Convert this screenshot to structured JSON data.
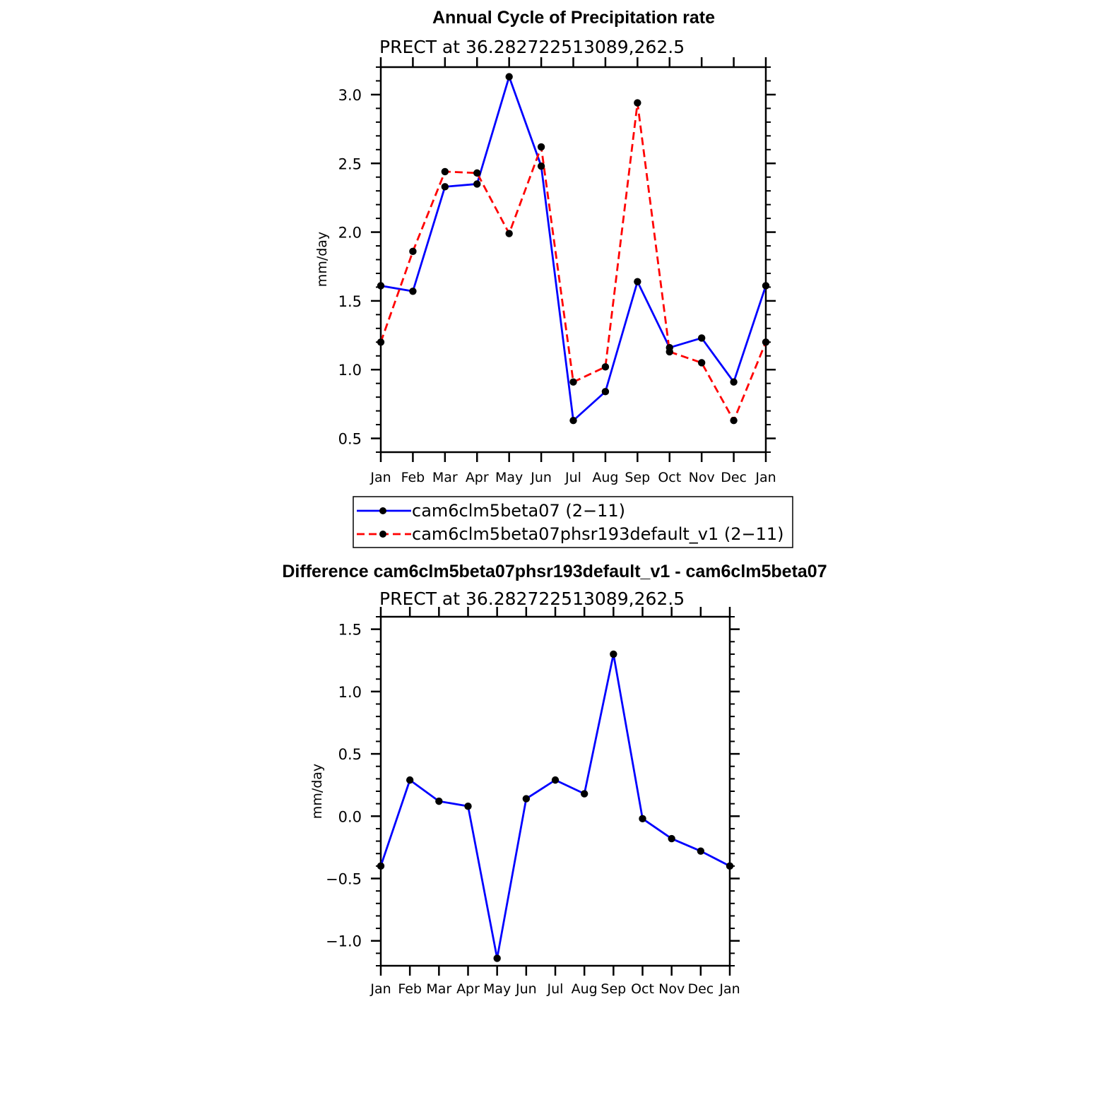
{
  "chart_data": [
    {
      "type": "line",
      "title": "Annual Cycle of Precipitation rate",
      "subtitle": "PRECT at 36.282722513089,262.5",
      "xlabel": "",
      "ylabel": "mm/day",
      "categories": [
        "Jan",
        "Feb",
        "Mar",
        "Apr",
        "May",
        "Jun",
        "Jul",
        "Aug",
        "Sep",
        "Oct",
        "Nov",
        "Dec",
        "Jan"
      ],
      "ylim": [
        0.4,
        3.2
      ],
      "yticks": [
        "0.5",
        "1.0",
        "1.5",
        "2.0",
        "2.5",
        "3.0"
      ],
      "ytick_values": [
        0.5,
        1.0,
        1.5,
        2.0,
        2.5,
        3.0
      ],
      "grid": false,
      "legend_position": "bottom",
      "series": [
        {
          "name": "cam6clm5beta07 (2−11)",
          "color": "#0000ff",
          "style": "solid",
          "values": [
            1.61,
            1.57,
            2.33,
            2.35,
            3.13,
            2.48,
            0.63,
            0.84,
            1.64,
            1.16,
            1.23,
            0.91,
            1.61
          ]
        },
        {
          "name": "cam6clm5beta07phsr193default_v1 (2−11)",
          "color": "#ff0000",
          "style": "dashed",
          "values": [
            1.2,
            1.86,
            2.44,
            2.43,
            1.99,
            2.62,
            0.91,
            1.02,
            2.94,
            1.13,
            1.05,
            0.63,
            1.2
          ]
        }
      ]
    },
    {
      "type": "line",
      "title": "Difference cam6clm5beta07phsr193default_v1 - cam6clm5beta07",
      "subtitle": "PRECT at 36.282722513089,262.5",
      "xlabel": "",
      "ylabel": "mm/day",
      "categories": [
        "Jan",
        "Feb",
        "Mar",
        "Apr",
        "May",
        "Jun",
        "Jul",
        "Aug",
        "Sep",
        "Oct",
        "Nov",
        "Dec",
        "Jan"
      ],
      "ylim": [
        -1.2,
        1.6
      ],
      "yticks": [
        "−1.0",
        "−0.5",
        "0.0",
        "0.5",
        "1.0",
        "1.5"
      ],
      "ytick_values": [
        -1.0,
        -0.5,
        0.0,
        0.5,
        1.0,
        1.5
      ],
      "grid": false,
      "series": [
        {
          "color": "#0000ff",
          "style": "solid",
          "values": [
            -0.4,
            0.29,
            0.12,
            0.08,
            -1.14,
            0.14,
            0.29,
            0.18,
            1.3,
            -0.02,
            -0.18,
            -0.28,
            -0.4
          ]
        }
      ]
    }
  ]
}
